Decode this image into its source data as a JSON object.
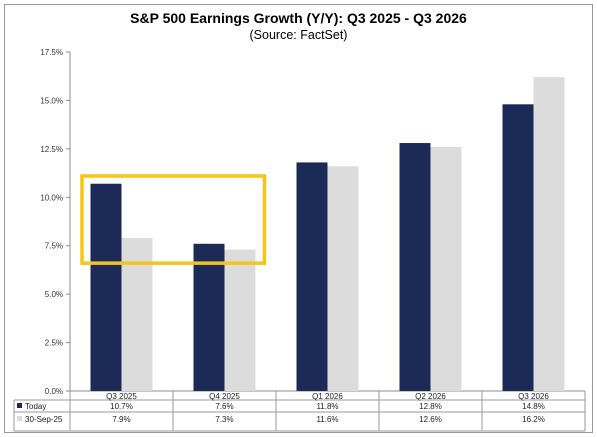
{
  "title": "S&P 500 Earnings Growth (Y/Y): Q3 2025 - Q3 2026",
  "subtitle": "(Source: FactSet)",
  "chart_data": {
    "type": "bar",
    "title": "S&P 500 Earnings Growth (Y/Y): Q3 2025 - Q3 2026",
    "subtitle": "(Source: FactSet)",
    "categories": [
      "Q3 2025",
      "Q4 2025",
      "Q1 2026",
      "Q2 2026",
      "Q3 2026"
    ],
    "series": [
      {
        "name": "Today",
        "color": "#1b2a56",
        "values": [
          10.7,
          7.6,
          11.8,
          12.8,
          14.8
        ],
        "labels": [
          "10.7%",
          "7.6%",
          "11.8%",
          "12.8%",
          "14.8%"
        ]
      },
      {
        "name": "30-Sep-25",
        "color": "#dcdcdc",
        "values": [
          7.9,
          7.3,
          11.6,
          12.6,
          16.2
        ],
        "labels": [
          "7.9%",
          "7.3%",
          "11.6%",
          "12.6%",
          "16.2%"
        ]
      }
    ],
    "ylim": [
      0,
      17.5
    ],
    "yticks": [
      "0.0%",
      "2.5%",
      "5.0%",
      "7.5%",
      "10.0%",
      "12.5%",
      "15.0%",
      "17.5%"
    ],
    "grid": false,
    "legend": "data-table-bottom",
    "highlight": {
      "color": "#f5c518",
      "categories": [
        "Q3 2025",
        "Q4 2025"
      ],
      "y_range": [
        6.6,
        11.1
      ]
    }
  }
}
